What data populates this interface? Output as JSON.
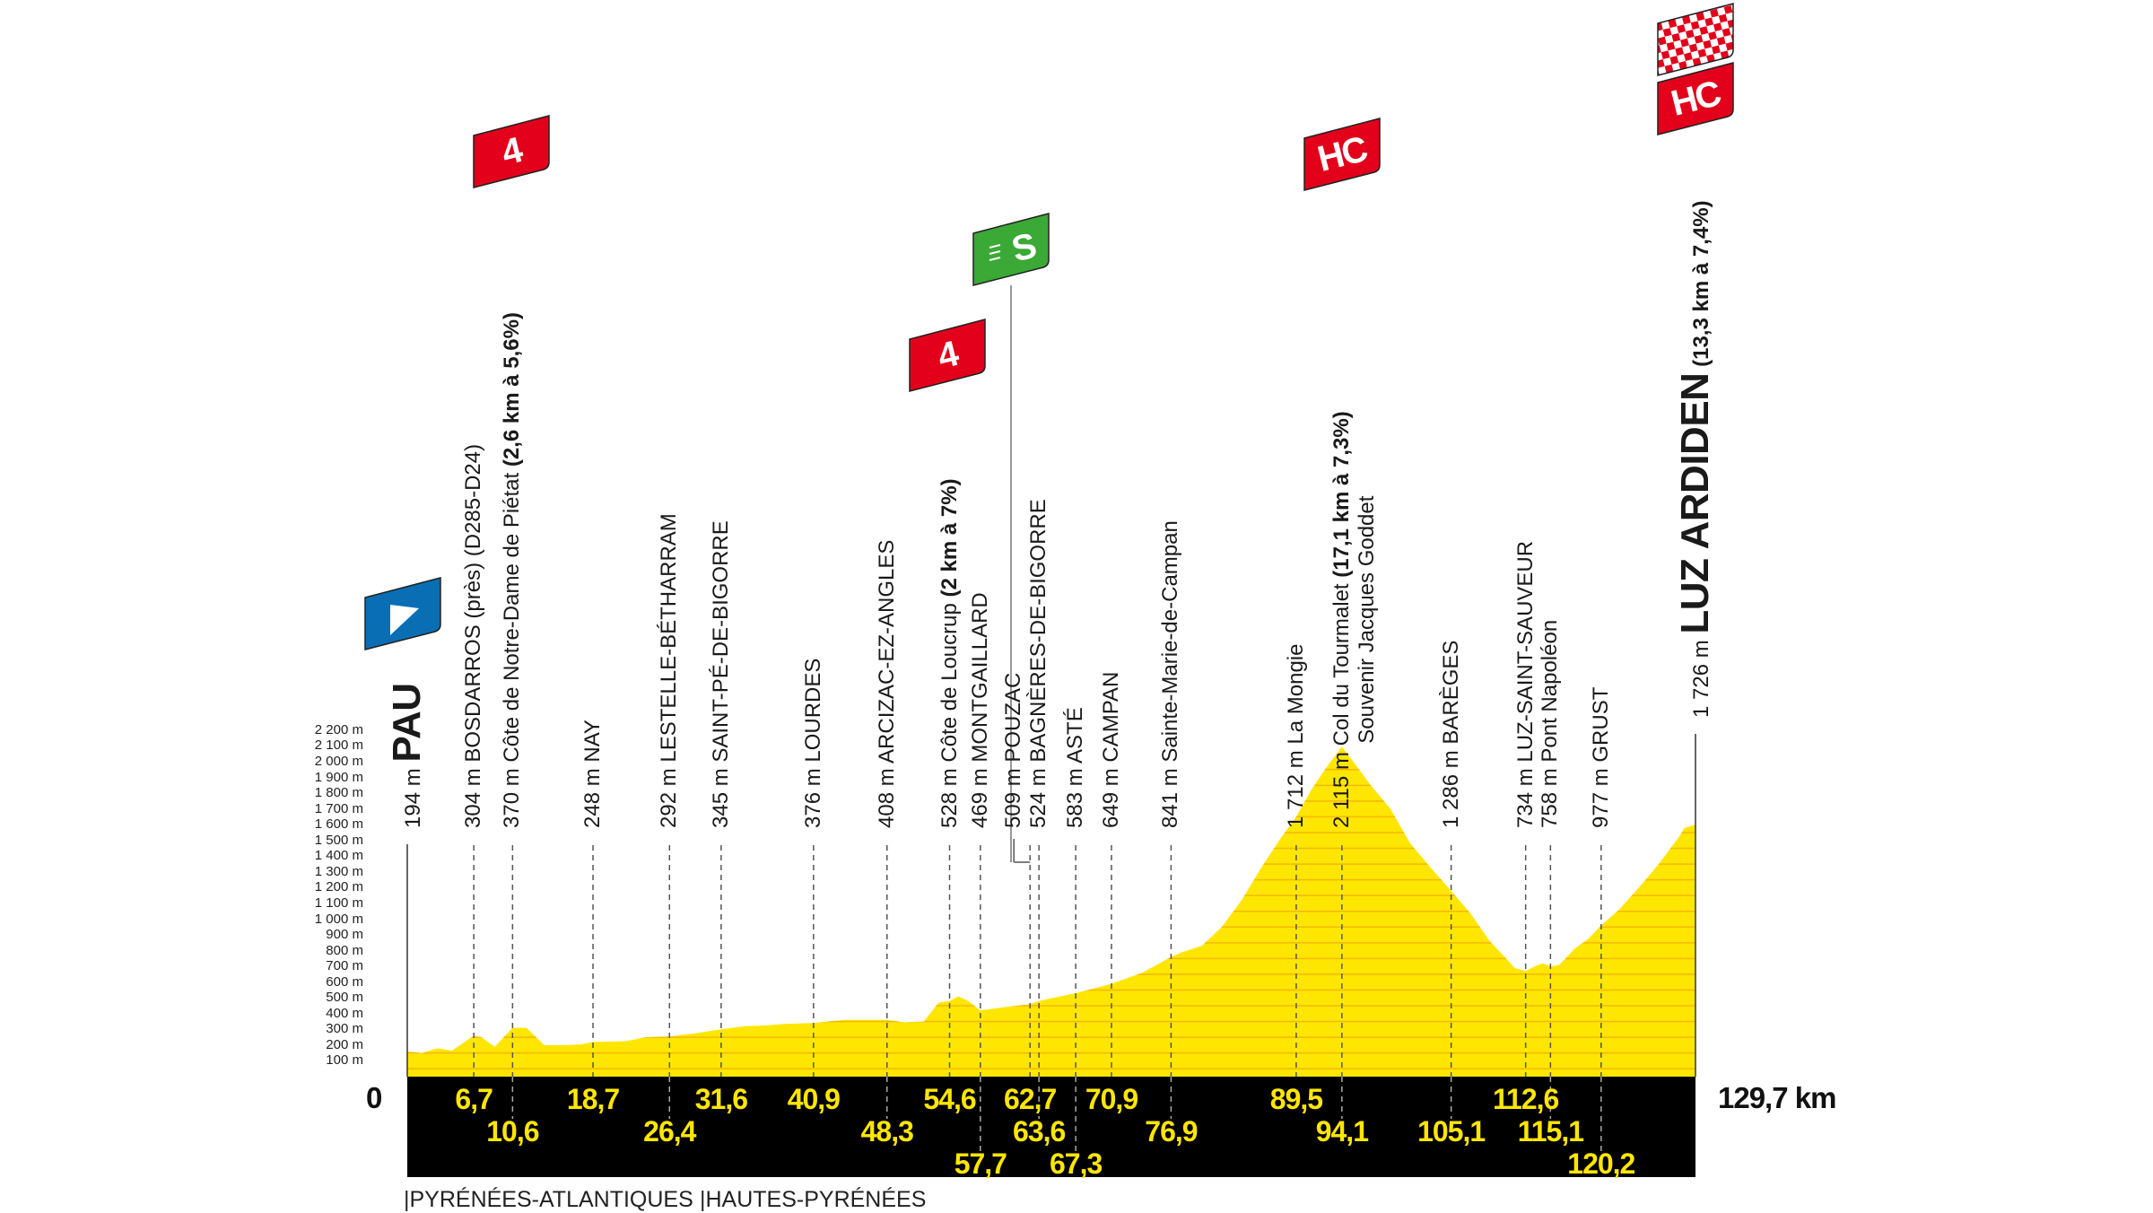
{
  "chart_data": {
    "type": "area",
    "xlim": [
      0,
      129.7
    ],
    "ylim": [
      0,
      2200
    ],
    "y_ticks": [
      {
        "value": 100,
        "label": "100 m"
      },
      {
        "value": 200,
        "label": "200 m"
      },
      {
        "value": 300,
        "label": "300 m"
      },
      {
        "value": 400,
        "label": "400 m"
      },
      {
        "value": 500,
        "label": "500 m"
      },
      {
        "value": 600,
        "label": "600 m"
      },
      {
        "value": 700,
        "label": "700 m"
      },
      {
        "value": 800,
        "label": "800 m"
      },
      {
        "value": 900,
        "label": "900 m"
      },
      {
        "value": 1000,
        "label": "1 000 m"
      },
      {
        "value": 1100,
        "label": "1 100 m"
      },
      {
        "value": 1200,
        "label": "1 200 m"
      },
      {
        "value": 1300,
        "label": "1 300 m"
      },
      {
        "value": 1400,
        "label": "1 400 m"
      },
      {
        "value": 1500,
        "label": "1 500 m"
      },
      {
        "value": 1600,
        "label": "1 600 m"
      },
      {
        "value": 1700,
        "label": "1 700 m"
      },
      {
        "value": 1800,
        "label": "1 800 m"
      },
      {
        "value": 1900,
        "label": "1 900 m"
      },
      {
        "value": 2000,
        "label": "2 000 m"
      },
      {
        "value": 2100,
        "label": "2 100 m"
      },
      {
        "value": 2200,
        "label": "2 200 m"
      }
    ],
    "grid": false,
    "profile": [
      [
        0,
        160
      ],
      [
        1.5,
        150
      ],
      [
        3,
        180
      ],
      [
        4.5,
        165
      ],
      [
        6.7,
        260
      ],
      [
        7.5,
        250
      ],
      [
        8.8,
        190
      ],
      [
        10.6,
        310
      ],
      [
        12,
        310
      ],
      [
        13.8,
        200
      ],
      [
        16,
        200
      ],
      [
        17.5,
        205
      ],
      [
        18.7,
        220
      ],
      [
        22,
        225
      ],
      [
        24,
        250
      ],
      [
        26.4,
        255
      ],
      [
        29,
        275
      ],
      [
        31.6,
        300
      ],
      [
        34,
        320
      ],
      [
        36,
        325
      ],
      [
        38,
        335
      ],
      [
        40.9,
        340
      ],
      [
        44,
        360
      ],
      [
        48.3,
        360
      ],
      [
        50,
        345
      ],
      [
        52,
        350
      ],
      [
        53.5,
        470
      ],
      [
        54.6,
        480
      ],
      [
        55.5,
        510
      ],
      [
        56.5,
        480
      ],
      [
        57.7,
        420
      ],
      [
        60,
        440
      ],
      [
        62.7,
        460
      ],
      [
        63.6,
        480
      ],
      [
        65,
        500
      ],
      [
        67.3,
        530
      ],
      [
        70.9,
        590
      ],
      [
        74,
        660
      ],
      [
        76.9,
        760
      ],
      [
        78,
        790
      ],
      [
        80,
        830
      ],
      [
        82,
        950
      ],
      [
        84,
        1120
      ],
      [
        86,
        1330
      ],
      [
        88,
        1520
      ],
      [
        89.5,
        1650
      ],
      [
        91,
        1820
      ],
      [
        92.5,
        1960
      ],
      [
        94.1,
        2095
      ],
      [
        95.5,
        1980
      ],
      [
        97,
        1850
      ],
      [
        99,
        1700
      ],
      [
        101,
        1480
      ],
      [
        103,
        1330
      ],
      [
        105.1,
        1180
      ],
      [
        107,
        1040
      ],
      [
        109,
        860
      ],
      [
        110.5,
        760
      ],
      [
        111.5,
        690
      ],
      [
        112.6,
        670
      ],
      [
        113.5,
        700
      ],
      [
        114.3,
        720
      ],
      [
        115.1,
        700
      ],
      [
        116,
        710
      ],
      [
        117.5,
        810
      ],
      [
        119,
        880
      ],
      [
        120.2,
        960
      ],
      [
        122,
        1060
      ],
      [
        124,
        1200
      ],
      [
        126,
        1350
      ],
      [
        128,
        1520
      ],
      [
        128.6,
        1580
      ],
      [
        129.7,
        1600
      ]
    ],
    "start_km_label": "0",
    "distance_label": "129,7 km",
    "locations": [
      {
        "km": 0,
        "km_label": "",
        "row": 0,
        "elevation": "194 m",
        "name": "PAU",
        "climb": "",
        "style": "finish-town"
      },
      {
        "km": 6.7,
        "km_label": "6,7",
        "row": 1,
        "elevation": "304 m",
        "name": "BOSDARROS (près) (D285-D24)",
        "climb": "",
        "style": "normal"
      },
      {
        "km": 10.6,
        "km_label": "10,6",
        "row": 2,
        "elevation": "370 m",
        "name": "Côte de Notre-Dame de Piétat",
        "climb": "(2,6 km à 5,6%)",
        "style": "normal"
      },
      {
        "km": 18.7,
        "km_label": "18,7",
        "row": 1,
        "elevation": "248 m",
        "name": "NAY",
        "climb": "",
        "style": "normal"
      },
      {
        "km": 26.4,
        "km_label": "26,4",
        "row": 2,
        "elevation": "292 m",
        "name": "LESTELLE-BÉTHARRAM",
        "climb": "",
        "style": "normal"
      },
      {
        "km": 31.6,
        "km_label": "31,6",
        "row": 1,
        "elevation": "345 m",
        "name": "SAINT-PÉ-DE-BIGORRE",
        "climb": "",
        "style": "normal"
      },
      {
        "km": 40.9,
        "km_label": "40,9",
        "row": 1,
        "elevation": "376 m",
        "name": "LOURDES",
        "climb": "",
        "style": "normal"
      },
      {
        "km": 48.3,
        "km_label": "48,3",
        "row": 2,
        "elevation": "408 m",
        "name": "ARCIZAC-EZ-ANGLES",
        "climb": "",
        "style": "normal"
      },
      {
        "km": 54.6,
        "km_label": "54,6",
        "row": 1,
        "elevation": "528 m",
        "name": "Côte de Loucrup",
        "climb": "(2 km à 7%)",
        "style": "normal"
      },
      {
        "km": 57.7,
        "km_label": "57,7",
        "row": 3,
        "elevation": "469 m",
        "name": "MONTGAILLARD",
        "climb": "",
        "style": "normal"
      },
      {
        "km": 62.7,
        "km_label": "62,7",
        "row": 1,
        "elevation": "509 m",
        "name": "POUZAC",
        "climb": "",
        "style": "normal"
      },
      {
        "km": 63.6,
        "km_label": "63,6",
        "row": 2,
        "elevation": "524 m",
        "name": "BAGNÈRES-DE-BIGORRE",
        "climb": "",
        "style": "normal"
      },
      {
        "km": 67.3,
        "km_label": "67,3",
        "row": 3,
        "elevation": "583 m",
        "name": "ASTÉ",
        "climb": "",
        "style": "normal"
      },
      {
        "km": 70.9,
        "km_label": "70,9",
        "row": 1,
        "elevation": "649 m",
        "name": "CAMPAN",
        "climb": "",
        "style": "normal"
      },
      {
        "km": 76.9,
        "km_label": "76,9",
        "row": 2,
        "elevation": "841 m",
        "name": "Sainte-Marie-de-Campan",
        "climb": "",
        "style": "normal"
      },
      {
        "km": 89.5,
        "km_label": "89,5",
        "row": 1,
        "elevation": "1 712 m",
        "name": "La Mongie",
        "climb": "",
        "style": "normal"
      },
      {
        "km": 94.1,
        "km_label": "94,1",
        "row": 2,
        "elevation": "2 115 m",
        "name": "Col du Tourmalet",
        "climb": "(17,1 km à 7,3%)",
        "subtitle": "Souvenir Jacques Goddet",
        "style": "normal"
      },
      {
        "km": 105.1,
        "km_label": "105,1",
        "row": 2,
        "elevation": "1 286 m",
        "name": "BARÈGES",
        "climb": "",
        "style": "normal"
      },
      {
        "km": 112.6,
        "km_label": "112,6",
        "row": 1,
        "elevation": "734 m",
        "name": "LUZ-SAINT-SAUVEUR",
        "climb": "",
        "style": "normal"
      },
      {
        "km": 115.1,
        "km_label": "115,1",
        "row": 2,
        "elevation": "758 m",
        "name": "Pont Napoléon",
        "climb": "",
        "style": "normal"
      },
      {
        "km": 120.2,
        "km_label": "120,2",
        "row": 3,
        "elevation": "977 m",
        "name": "GRUST",
        "climb": "",
        "style": "normal"
      },
      {
        "km": 129.7,
        "km_label": "",
        "row": 0,
        "elevation": "1 726 m",
        "name": "LUZ ARDIDEN",
        "climb": "(13,3 km à 7,4%)",
        "style": "finish-town"
      }
    ],
    "flags": [
      {
        "type": "start",
        "label": "",
        "color": "#0A6EB4",
        "icon": "start-triangle-icon"
      },
      {
        "type": "climb",
        "label": "4",
        "color": "#E2001A",
        "location": "Côte de Notre-Dame de Piétat"
      },
      {
        "type": "sprint",
        "label": "S",
        "color": "#3AA935",
        "location": "POUZAC",
        "icon": "sprint-icon"
      },
      {
        "type": "climb",
        "label": "4",
        "color": "#E2001A",
        "location": "Côte de Loucrup"
      },
      {
        "type": "climb",
        "label": "HC",
        "color": "#E2001A",
        "location": "Col du Tourmalet"
      },
      {
        "type": "finish",
        "label": "",
        "color": "#E2001A",
        "icon": "checkered-flag-icon"
      },
      {
        "type": "climb",
        "label": "HC",
        "color": "#E2001A",
        "location": "LUZ ARDIDEN"
      }
    ],
    "departments": [
      "|PYRÉNÉES-ATLANTIQUES",
      "|HAUTES-PYRÉNÉES"
    ]
  },
  "colors": {
    "profile_fill": "#FFE600",
    "profile_stripe": "#F4B800",
    "band": "#000000",
    "km_text": "#FFE600"
  }
}
